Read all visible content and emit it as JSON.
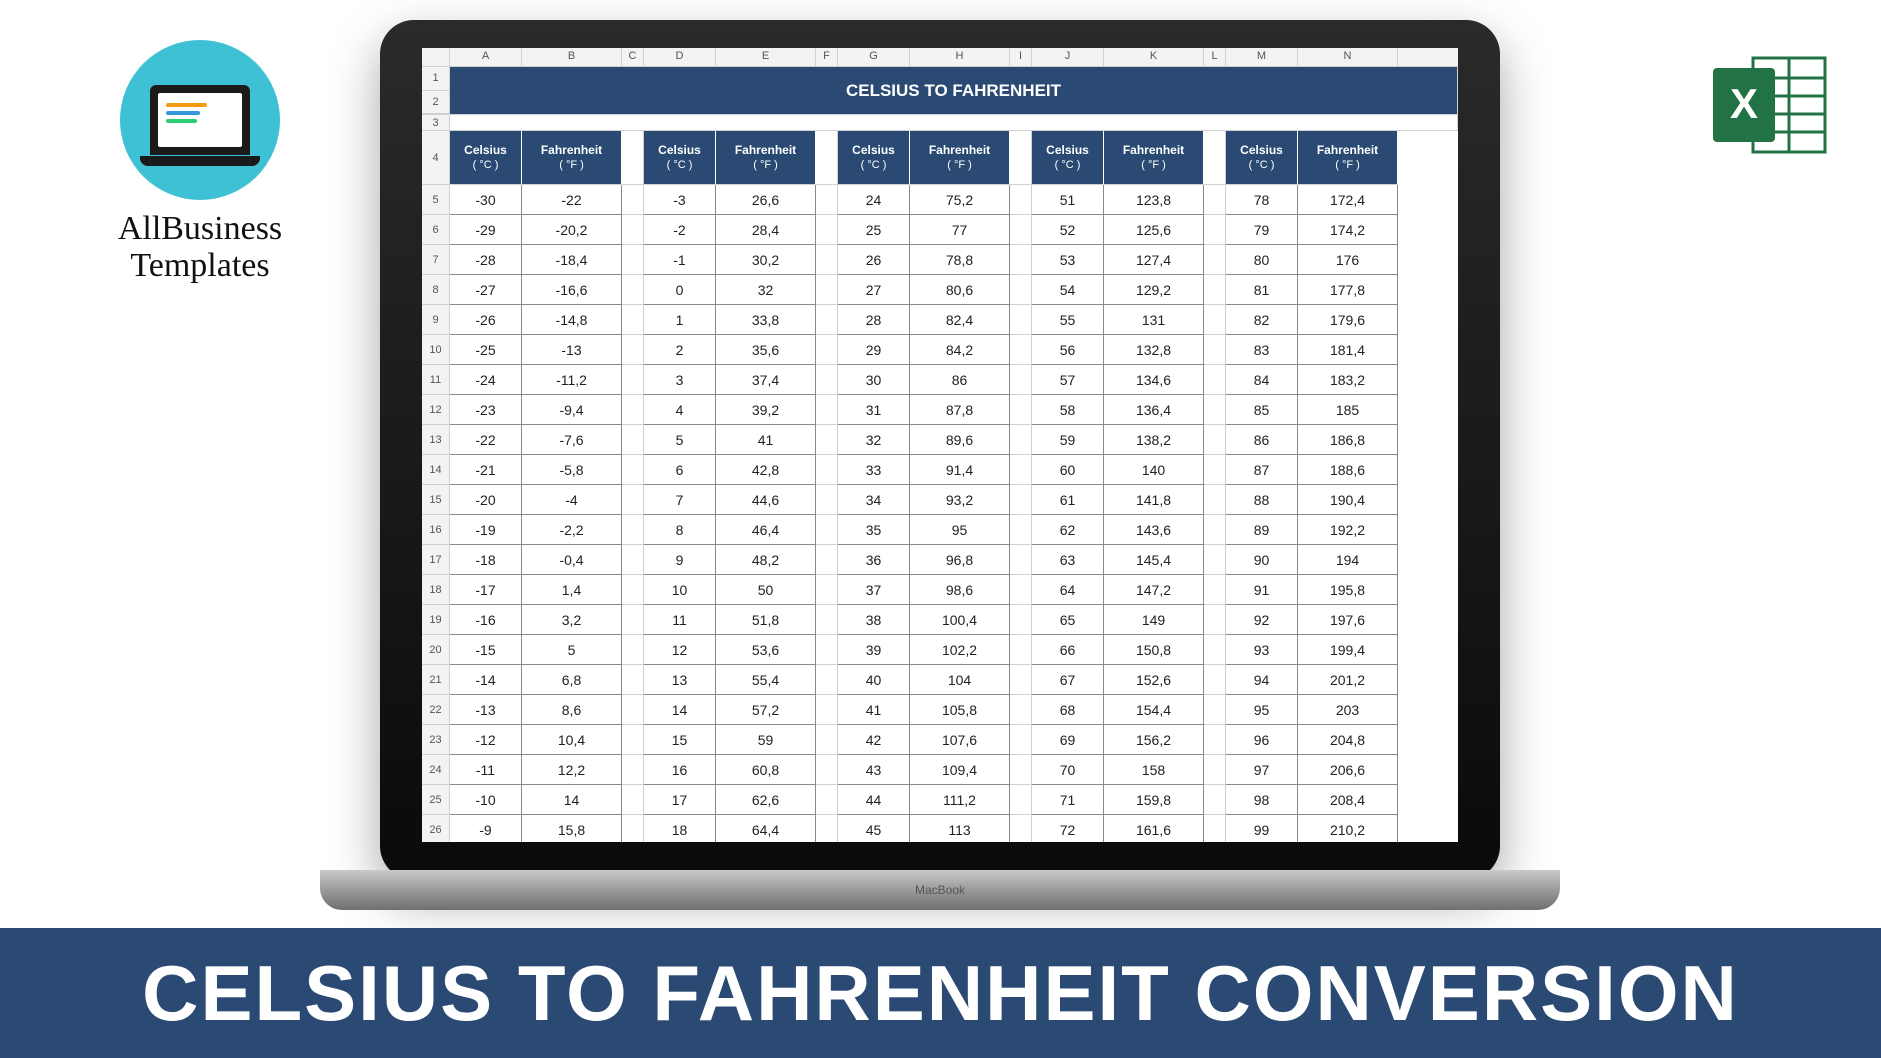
{
  "brand": {
    "line1": "AllBusiness",
    "line2": "Templates"
  },
  "footer_title": "CELSIUS TO FAHRENHEIT CONVERSION",
  "laptop_label": "MacBook",
  "sheet": {
    "title": "CELSIUS TO FAHRENHEIT",
    "columns": [
      "",
      "A",
      "B",
      "C",
      "D",
      "E",
      "F",
      "G",
      "H",
      "I",
      "J",
      "K",
      "L",
      "M",
      "N"
    ],
    "row_markers_title": [
      "1",
      "2"
    ],
    "row_marker_gap": "3",
    "row_marker_header": "4",
    "header_celsius": "Celsius",
    "header_fahrenheit": "Fahrenheit",
    "unit_c": "( °C )",
    "unit_f": "( °F )",
    "data_row_start": 5,
    "blocks": [
      {
        "c_start": -30
      },
      {
        "c_start": -3
      },
      {
        "c_start": 24
      },
      {
        "c_start": 51
      },
      {
        "c_start": 78
      }
    ],
    "row_count": 22,
    "colors": {
      "header_bg": "#2a4a73",
      "header_fg": "#ffffff",
      "grid": "#888888",
      "sheet_bg": "#ffffff",
      "col_hdr_bg": "#f3f3f3"
    }
  },
  "excel_icon": {
    "fill": "#217346",
    "letter": "X"
  }
}
